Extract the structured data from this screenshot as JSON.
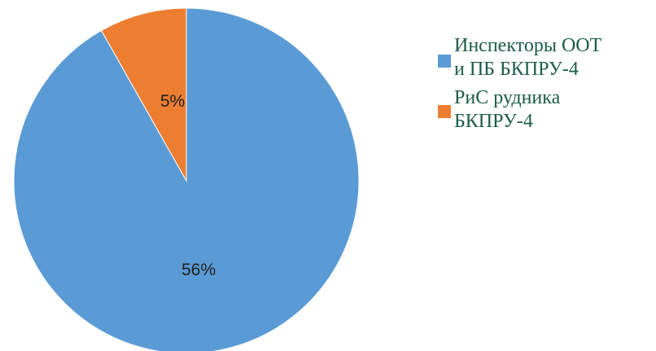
{
  "chart_data": {
    "type": "pie",
    "slices": [
      {
        "label": "Инспекторы ООТ и ПБ БКПРУ-4",
        "value": 56,
        "value_label": "56%",
        "color": "#5b9bd5"
      },
      {
        "label": "РиС рудника БКПРУ-4",
        "value": 5,
        "value_label": "5%",
        "color": "#ed7d31"
      }
    ],
    "legend": {
      "position": "right",
      "items": [
        {
          "line1": "Инспекторы ООТ",
          "line2": "и ПБ БКПРУ-4",
          "color": "#5b9bd5"
        },
        {
          "line1": "РиС рудника",
          "line2": "БКПРУ-4",
          "color": "#ed7d31"
        }
      ]
    }
  }
}
